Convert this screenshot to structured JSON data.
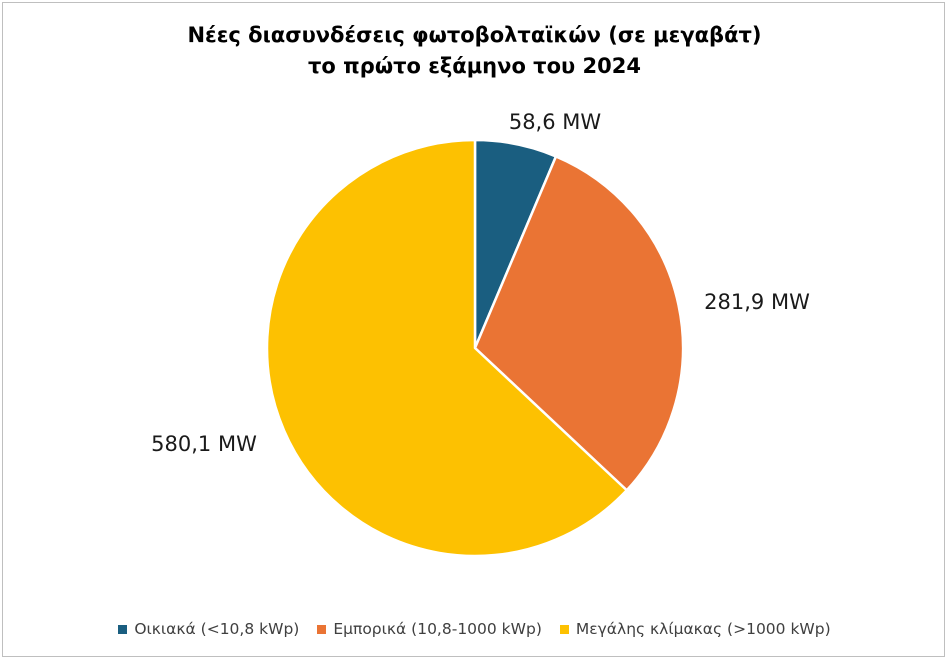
{
  "chart_data": {
    "type": "pie",
    "title_line1": "Νέες διασυνδέσεις φωτοβολταϊκών (σε μεγαβάτ)",
    "title_line2": "το πρώτο εξάμηνο του 2024",
    "categories": [
      "Οικιακά (<10,8 kWp)",
      "Εμπορικά (10,8-1000 kWp)",
      "Μεγάλης κλίμακας (>1000 kWp)"
    ],
    "values": [
      58.6,
      281.9,
      580.1
    ],
    "data_labels": [
      "58,6 MW",
      "281,9 MW",
      "580,1 MW"
    ],
    "colors": [
      "#1a5e80",
      "#ea7434",
      "#fdc101"
    ],
    "legend_placement": "bottom"
  }
}
